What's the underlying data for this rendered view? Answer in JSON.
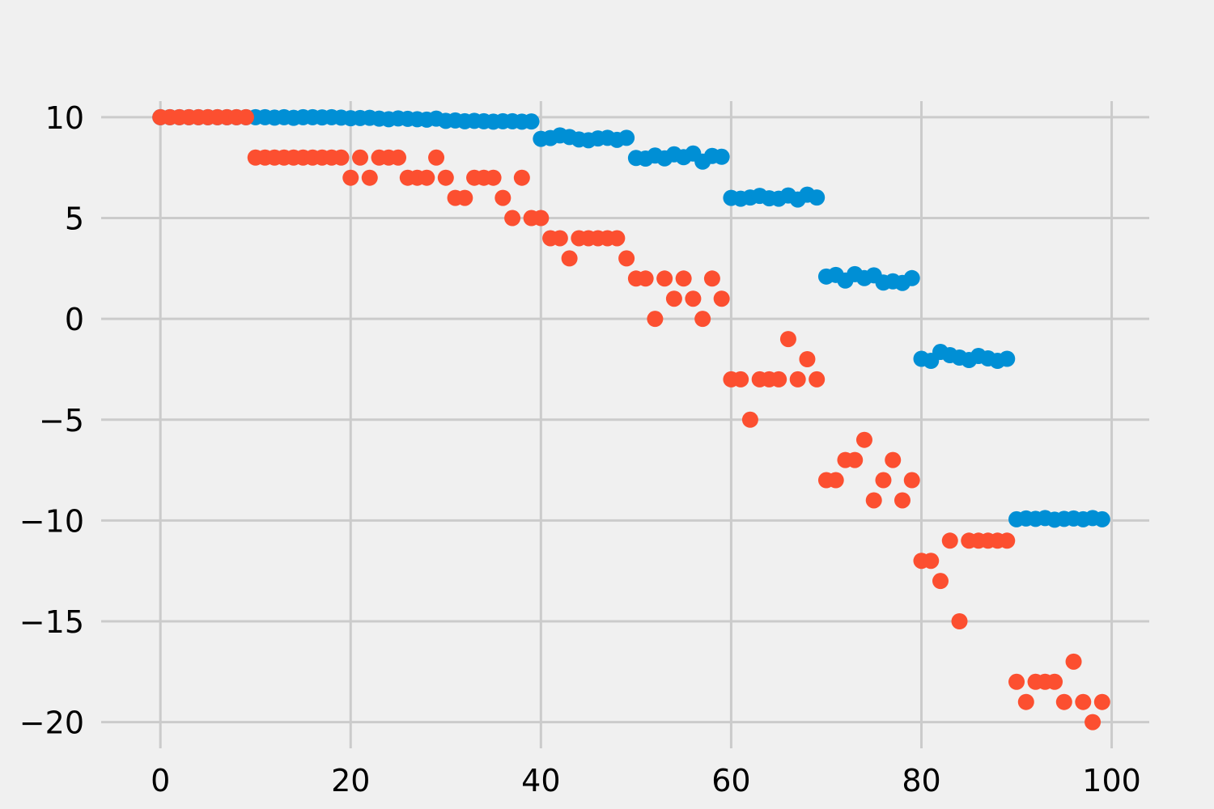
{
  "chart_data": {
    "type": "scatter",
    "title": "",
    "xlabel": "",
    "ylabel": "",
    "grid": true,
    "legend": "none",
    "xlim": [
      -4.95,
      103.95
    ],
    "ylim": [
      -21.5,
      11.0
    ],
    "xticks": [
      0,
      20,
      40,
      60,
      80,
      100
    ],
    "xtick_labels": [
      "0",
      "20",
      "40",
      "60",
      "80",
      "100"
    ],
    "yticks": [
      10,
      5,
      0,
      -5,
      -10,
      -15,
      -20
    ],
    "ytick_labels": [
      "10",
      "5",
      "0",
      "−5",
      "−10",
      "−15",
      "−20"
    ],
    "background": "#f0f0f0",
    "grid_color": "#cbcbcb",
    "series": [
      {
        "color": "#008fd5",
        "x": [
          0,
          1,
          2,
          3,
          4,
          5,
          6,
          7,
          8,
          9,
          10,
          11,
          12,
          13,
          14,
          15,
          16,
          17,
          18,
          19,
          20,
          21,
          22,
          23,
          24,
          25,
          26,
          27,
          28,
          29,
          30,
          31,
          32,
          33,
          34,
          35,
          36,
          37,
          38,
          39,
          40,
          41,
          42,
          43,
          44,
          45,
          46,
          47,
          48,
          49,
          50,
          51,
          52,
          53,
          54,
          55,
          56,
          57,
          58,
          59,
          60,
          61,
          62,
          63,
          64,
          65,
          66,
          67,
          68,
          69,
          70,
          71,
          72,
          73,
          74,
          75,
          76,
          77,
          78,
          79,
          80,
          81,
          82,
          83,
          84,
          85,
          86,
          87,
          88,
          89,
          90,
          91,
          92,
          93,
          94,
          95,
          96,
          97,
          98,
          99
        ],
        "y": [
          10,
          10,
          10,
          10,
          10,
          10,
          10,
          10,
          10,
          10,
          10,
          10,
          9.98,
          10,
          9.97,
          10,
          10,
          9.99,
          10,
          9.98,
          9.95,
          9.96,
          9.97,
          9.93,
          9.9,
          9.94,
          9.92,
          9.9,
          9.88,
          9.93,
          9.82,
          9.84,
          9.8,
          9.82,
          9.8,
          9.78,
          9.8,
          9.8,
          9.78,
          9.79,
          8.93,
          8.97,
          9.1,
          9.02,
          8.9,
          8.86,
          8.95,
          8.98,
          8.88,
          8.98,
          7.98,
          7.95,
          8.1,
          7.96,
          8.16,
          8.02,
          8.2,
          7.8,
          8.08,
          8.04,
          6,
          5.96,
          6.02,
          6.1,
          5.98,
          5.96,
          6.12,
          5.92,
          6.16,
          6.02,
          2.1,
          2.18,
          1.9,
          2.22,
          2.02,
          2.16,
          1.8,
          1.86,
          1.78,
          2.02,
          -1.98,
          -2.08,
          -1.64,
          -1.8,
          -1.92,
          -2.04,
          -1.84,
          -1.96,
          -2.08,
          -1.98,
          -9.94,
          -9.9,
          -9.92,
          -9.88,
          -9.96,
          -9.92,
          -9.9,
          -9.94,
          -9.88,
          -9.94
        ]
      },
      {
        "color": "#fc4f30",
        "x": [
          0,
          1,
          2,
          3,
          4,
          5,
          6,
          7,
          8,
          9,
          10,
          11,
          12,
          13,
          14,
          15,
          16,
          17,
          18,
          19,
          20,
          21,
          22,
          23,
          24,
          25,
          26,
          27,
          28,
          29,
          30,
          31,
          32,
          33,
          34,
          35,
          36,
          37,
          38,
          39,
          40,
          41,
          42,
          43,
          44,
          45,
          46,
          47,
          48,
          49,
          50,
          51,
          52,
          53,
          54,
          55,
          56,
          57,
          58,
          59,
          60,
          61,
          62,
          63,
          64,
          65,
          66,
          67,
          68,
          69,
          70,
          71,
          72,
          73,
          74,
          75,
          76,
          77,
          78,
          79,
          80,
          81,
          82,
          83,
          84,
          85,
          86,
          87,
          88,
          89,
          90,
          91,
          92,
          93,
          94,
          95,
          96,
          97,
          98,
          99
        ],
        "y": [
          10,
          10,
          10,
          10,
          10,
          10,
          10,
          10,
          10,
          10,
          8,
          8,
          8,
          8,
          8,
          8,
          8,
          8,
          8,
          8,
          7,
          8,
          7,
          8,
          8,
          8,
          7,
          7,
          7,
          8,
          7,
          6,
          6,
          7,
          7,
          7,
          6,
          5,
          7,
          5,
          5,
          4,
          4,
          3,
          4,
          4,
          4,
          4,
          4,
          3,
          2,
          2,
          0,
          2,
          1,
          2,
          1,
          0,
          2,
          1,
          -3,
          -3,
          -5,
          -3,
          -3,
          -3,
          -1,
          -3,
          -2,
          -3,
          -8,
          -8,
          -7,
          -7,
          -6,
          -9,
          -8,
          -7,
          -9,
          -8,
          -12,
          -12,
          -13,
          -11,
          -15,
          -11,
          -11,
          -11,
          -11,
          -11,
          -18,
          -19,
          -18,
          -18,
          -18,
          -19,
          -17,
          -19,
          -20,
          -19
        ]
      }
    ]
  }
}
